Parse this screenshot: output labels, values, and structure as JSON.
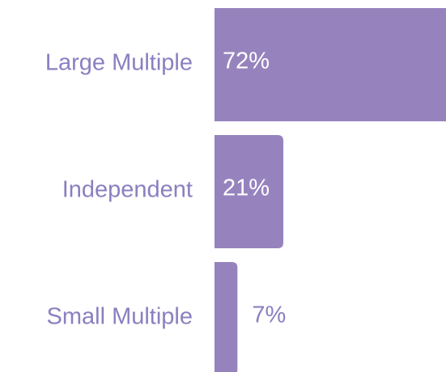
{
  "chart_data": {
    "type": "bar",
    "orientation": "horizontal",
    "categories": [
      "Large Multiple",
      "Independent",
      "Small Multiple"
    ],
    "values": [
      72,
      21,
      7
    ],
    "value_labels": [
      "72%",
      "21%",
      "7%"
    ],
    "color": "#9683be"
  }
}
